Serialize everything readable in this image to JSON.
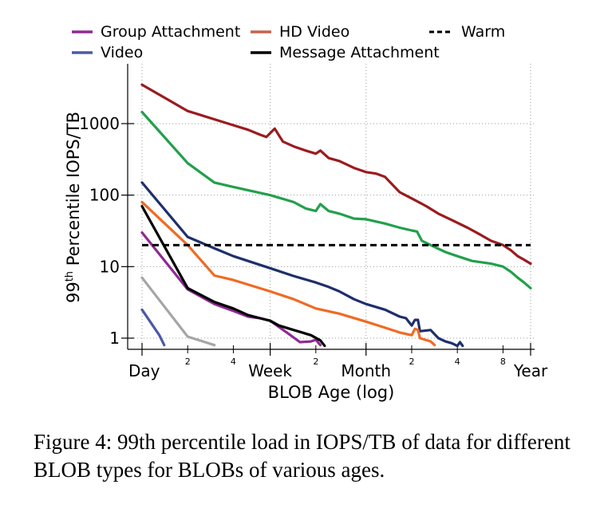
{
  "caption": "Figure 4: 99th percentile load in IOPS/TB of data for different BLOB types for BLOBs of various ages.",
  "chart_data": {
    "type": "line",
    "title": "",
    "xlabel": "BLOB Age (log)",
    "ylabel": "99th Percentile IOPS/TB",
    "ylabel_main": "99",
    "ylabel_sup": "th",
    "ylabel_rest": " Percentile IOPS/TB",
    "x_scale": "log",
    "y_scale": "log",
    "x_unit": "days",
    "xlim": [
      1,
      365
    ],
    "ylim": [
      0.8,
      6000
    ],
    "x_ticks": [
      {
        "x": 1,
        "label": "Day",
        "major": true
      },
      {
        "x": 2,
        "label": "2",
        "major": false
      },
      {
        "x": 4,
        "label": "4",
        "major": false
      },
      {
        "x": 7,
        "label": "Week",
        "major": true
      },
      {
        "x": 14,
        "label": "2",
        "major": false
      },
      {
        "x": 30,
        "label": "Month",
        "major": true
      },
      {
        "x": 60,
        "label": "2",
        "major": false
      },
      {
        "x": 120,
        "label": "4",
        "major": false
      },
      {
        "x": 240,
        "label": "8",
        "major": false
      },
      {
        "x": 365,
        "label": "Year",
        "major": true
      }
    ],
    "y_ticks": [
      {
        "y": 1,
        "label": "1"
      },
      {
        "y": 10,
        "label": "10"
      },
      {
        "y": 100,
        "label": "100"
      },
      {
        "y": 1000,
        "label": "1000"
      }
    ],
    "grid": true,
    "warm_threshold": 20,
    "legend": [
      {
        "name": "Group Attachment",
        "color": "#8e2a93",
        "dashed": false
      },
      {
        "name": "HD Video",
        "color": "#c8624e",
        "dashed": false
      },
      {
        "name": "Warm",
        "color": "#000000",
        "dashed": true
      },
      {
        "name": "Video",
        "color": "#4a5aa8",
        "dashed": false
      },
      {
        "name": "Message Attachment",
        "color": "#000000",
        "dashed": false
      }
    ],
    "series": [
      {
        "color": "#9b1b1e",
        "points": [
          [
            1,
            3500
          ],
          [
            2,
            1500
          ],
          [
            3,
            1150
          ],
          [
            4,
            950
          ],
          [
            5,
            820
          ],
          [
            6,
            700
          ],
          [
            6.6,
            650
          ],
          [
            7.5,
            850
          ],
          [
            8.5,
            560
          ],
          [
            10,
            480
          ],
          [
            12,
            420
          ],
          [
            14,
            380
          ],
          [
            15,
            420
          ],
          [
            17,
            330
          ],
          [
            20,
            300
          ],
          [
            25,
            240
          ],
          [
            30,
            210
          ],
          [
            35,
            200
          ],
          [
            40,
            180
          ],
          [
            50,
            110
          ],
          [
            60,
            90
          ],
          [
            75,
            70
          ],
          [
            90,
            55
          ],
          [
            110,
            45
          ],
          [
            140,
            35
          ],
          [
            170,
            28
          ],
          [
            200,
            23
          ],
          [
            240,
            20
          ],
          [
            270,
            17
          ],
          [
            300,
            14
          ],
          [
            330,
            12.5
          ],
          [
            365,
            11
          ]
        ]
      },
      {
        "color": "#22a04b",
        "points": [
          [
            1,
            1450
          ],
          [
            2,
            280
          ],
          [
            3,
            150
          ],
          [
            4,
            130
          ],
          [
            7,
            100
          ],
          [
            10,
            80
          ],
          [
            12,
            65
          ],
          [
            14,
            60
          ],
          [
            15,
            75
          ],
          [
            17,
            60
          ],
          [
            20,
            55
          ],
          [
            25,
            47
          ],
          [
            30,
            46
          ],
          [
            40,
            40
          ],
          [
            50,
            35
          ],
          [
            60,
            32
          ],
          [
            65,
            31
          ],
          [
            70,
            23
          ],
          [
            80,
            20
          ],
          [
            100,
            16
          ],
          [
            120,
            14
          ],
          [
            150,
            12
          ],
          [
            200,
            11
          ],
          [
            240,
            10
          ],
          [
            270,
            8.5
          ],
          [
            300,
            7
          ],
          [
            330,
            6
          ],
          [
            365,
            5
          ]
        ]
      },
      {
        "color": "#1e2f6b",
        "points": [
          [
            1,
            150
          ],
          [
            2,
            26
          ],
          [
            3,
            18
          ],
          [
            4,
            14
          ],
          [
            7,
            9.5
          ],
          [
            10,
            7.4
          ],
          [
            14,
            6
          ],
          [
            17,
            5.2
          ],
          [
            20,
            4.5
          ],
          [
            25,
            3.5
          ],
          [
            30,
            3
          ],
          [
            40,
            2.5
          ],
          [
            50,
            2
          ],
          [
            55,
            1.9
          ],
          [
            60,
            1.5
          ],
          [
            63,
            1.8
          ],
          [
            66,
            1.8
          ],
          [
            68,
            1.25
          ],
          [
            80,
            1.3
          ],
          [
            90,
            1.0
          ],
          [
            100,
            0.9
          ],
          [
            110,
            0.85
          ],
          [
            120,
            0.78
          ],
          [
            125,
            0.88
          ],
          [
            130,
            0.78
          ]
        ]
      },
      {
        "color": "#f06a24",
        "points": [
          [
            1,
            80
          ],
          [
            2,
            20
          ],
          [
            3,
            7.5
          ],
          [
            4,
            6.5
          ],
          [
            7,
            4.5
          ],
          [
            10,
            3.5
          ],
          [
            14,
            2.6
          ],
          [
            20,
            2.2
          ],
          [
            30,
            1.7
          ],
          [
            40,
            1.4
          ],
          [
            50,
            1.2
          ],
          [
            60,
            1.1
          ],
          [
            63,
            1.35
          ],
          [
            66,
            1.3
          ],
          [
            68,
            1.0
          ],
          [
            80,
            0.9
          ],
          [
            85,
            0.8
          ]
        ]
      },
      {
        "color": "#8e2a93",
        "points": [
          [
            1,
            30
          ],
          [
            2,
            4.8
          ],
          [
            3,
            3
          ],
          [
            4,
            2.4
          ],
          [
            5,
            2
          ],
          [
            6,
            1.9
          ],
          [
            7,
            1.75
          ],
          [
            9,
            1.2
          ],
          [
            11,
            0.88
          ],
          [
            13,
            0.9
          ],
          [
            14,
            0.95
          ],
          [
            15,
            0.8
          ]
        ]
      },
      {
        "color": "#000000",
        "points": [
          [
            1,
            70
          ],
          [
            2,
            5
          ],
          [
            3,
            3.2
          ],
          [
            4,
            2.6
          ],
          [
            5,
            2.1
          ],
          [
            6,
            1.9
          ],
          [
            7,
            1.75
          ],
          [
            8,
            1.5
          ],
          [
            10,
            1.3
          ],
          [
            13,
            1.1
          ],
          [
            15,
            0.93
          ],
          [
            16,
            0.78
          ]
        ]
      },
      {
        "color": "#a6a6a6",
        "points": [
          [
            1,
            7
          ],
          [
            2,
            1.05
          ],
          [
            3,
            0.8
          ]
        ]
      },
      {
        "color": "#4a5aa8",
        "points": [
          [
            1,
            2.5
          ],
          [
            1.3,
            1.1
          ],
          [
            1.4,
            0.8
          ]
        ]
      }
    ]
  }
}
